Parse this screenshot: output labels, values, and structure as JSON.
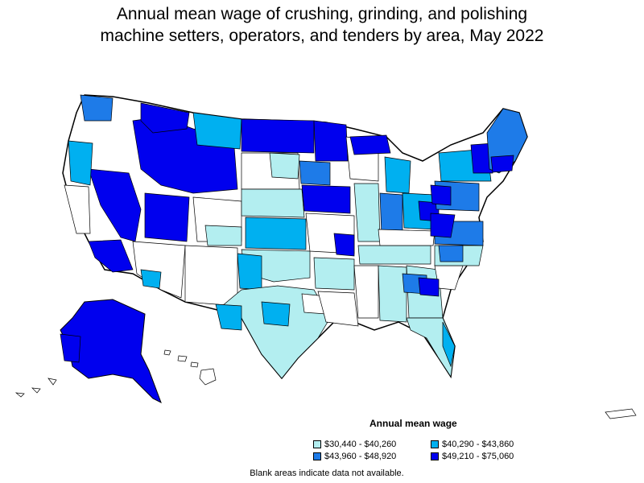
{
  "title": {
    "line1": "Annual mean wage of crushing, grinding, and polishing",
    "line2": "machine setters, operators, and tenders by area, May 2022"
  },
  "legend": {
    "title": "Annual mean wage",
    "items": [
      {
        "label": "$30,440 - $40,260",
        "color": "#b3eef0"
      },
      {
        "label": "$40,290 - $43,860",
        "color": "#00b0f0"
      },
      {
        "label": "$43,960 - $48,920",
        "color": "#1e7be8"
      },
      {
        "label": "$49,210 - $75,060",
        "color": "#0000ee"
      }
    ]
  },
  "note": "Blank areas indicate data not available."
}
